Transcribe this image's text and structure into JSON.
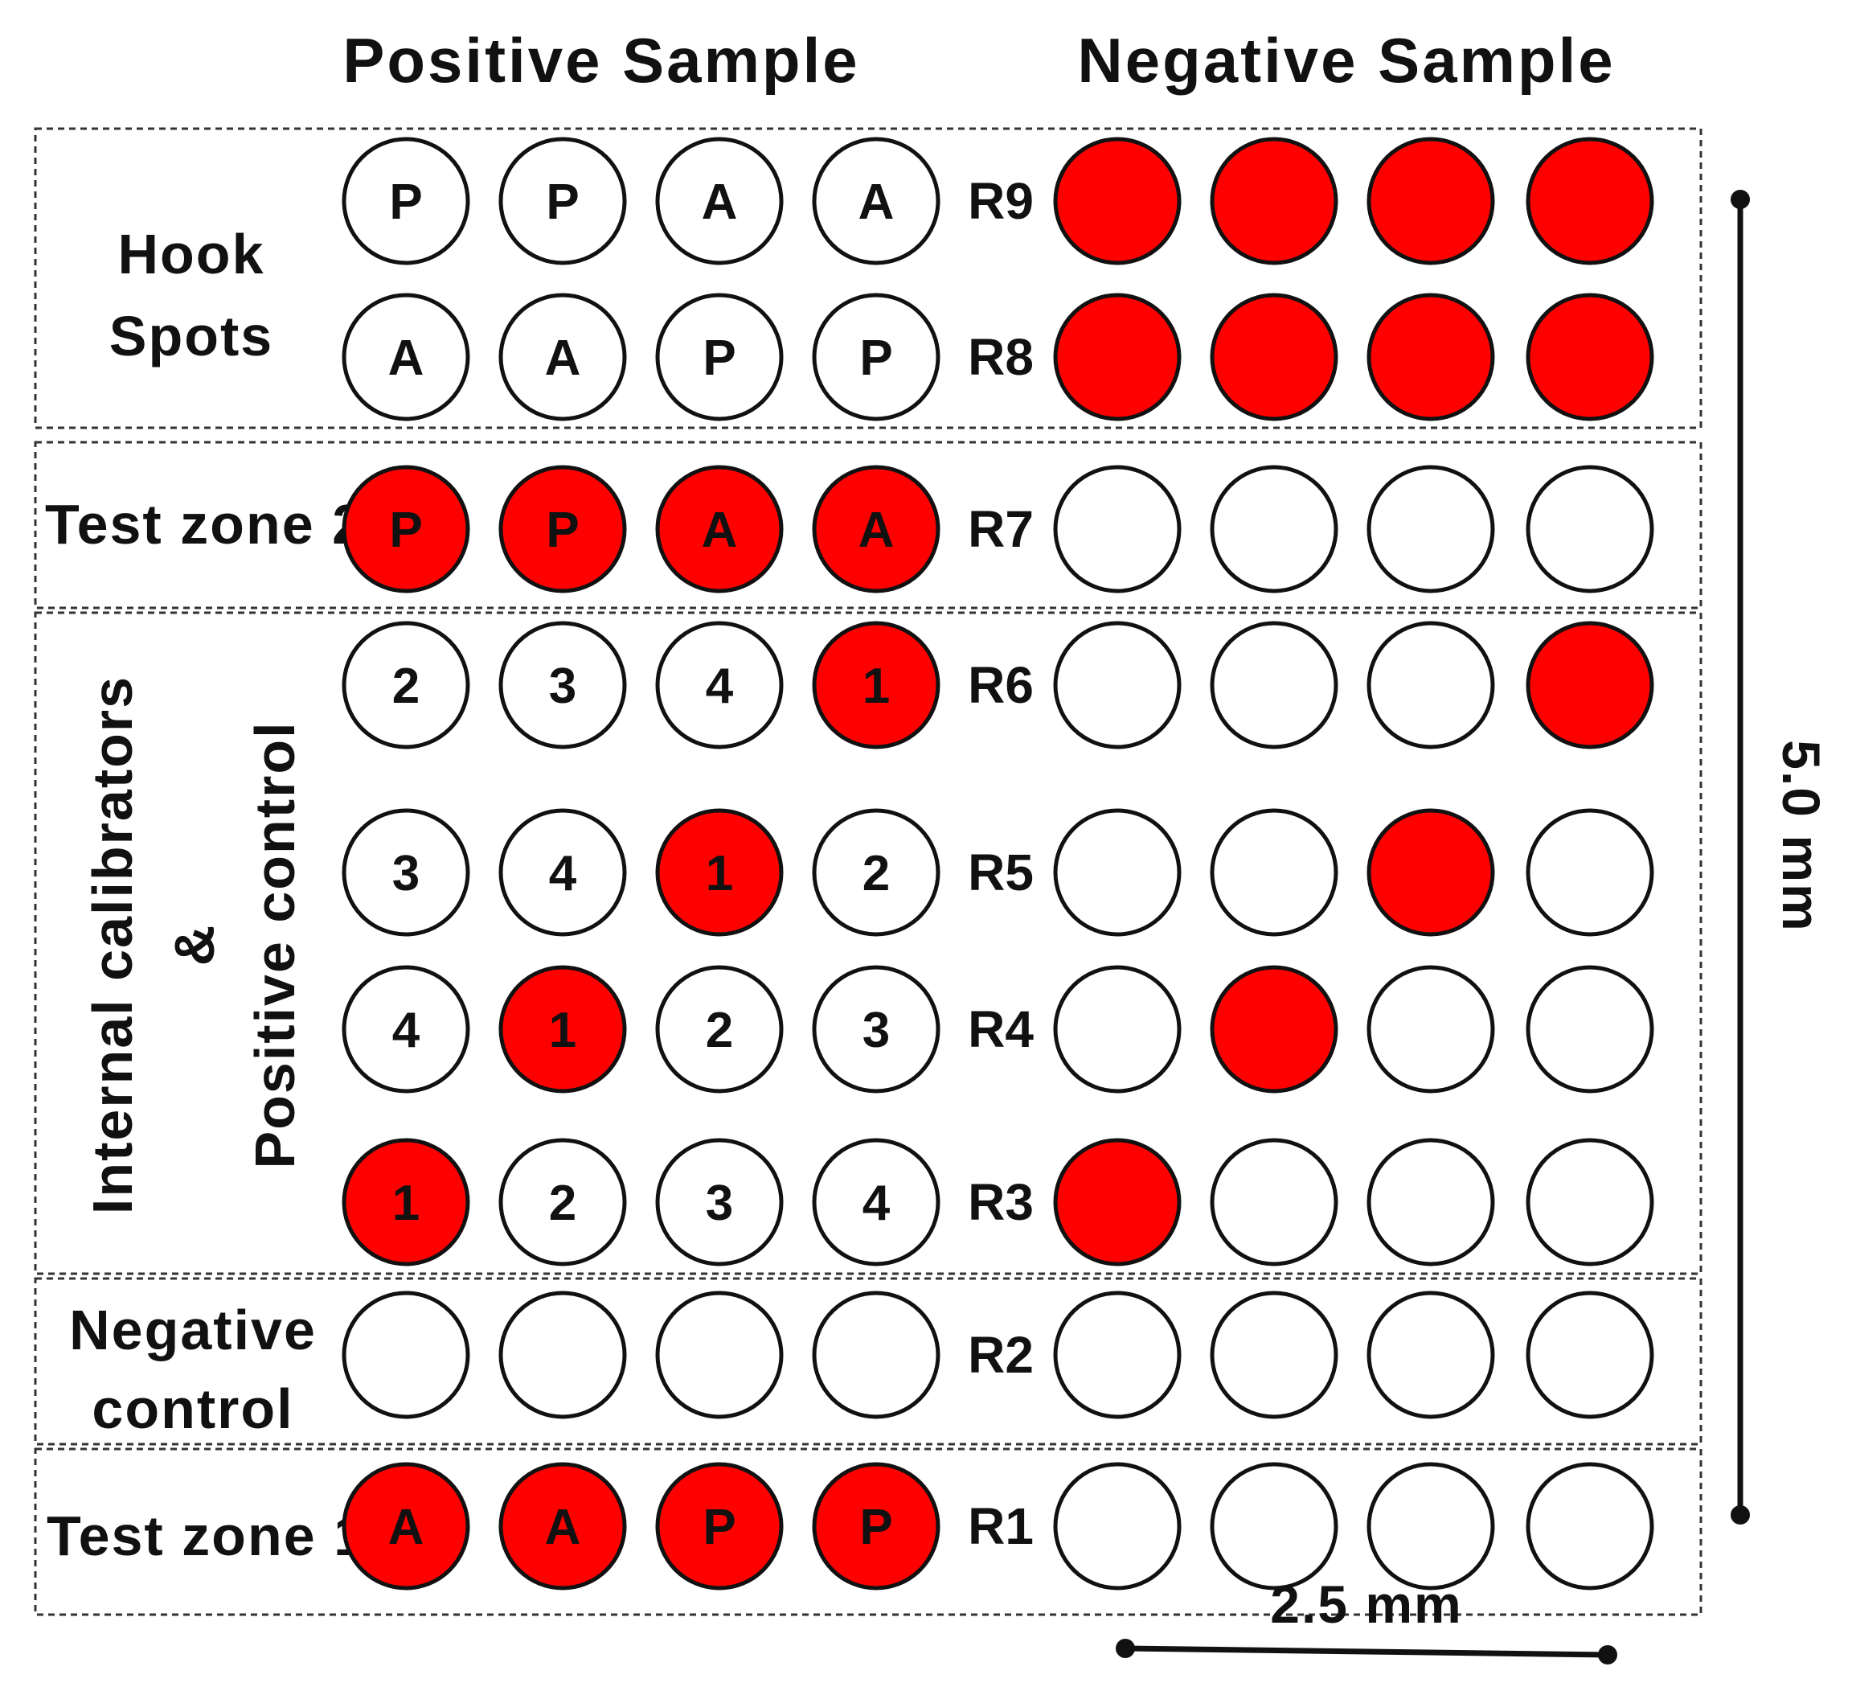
{
  "headers": {
    "positive": "Positive Sample",
    "negative": "Negative Sample"
  },
  "colors": {
    "active": "#ff0000",
    "inactive": "#ffffff",
    "stroke": "#111111"
  },
  "zones": {
    "hook": {
      "line1": "Hook",
      "line2": "Spots"
    },
    "test2": "Test zone 2",
    "calib": {
      "line1": "Internal calibrators",
      "line2": "&",
      "line3": "Positive control"
    },
    "negctrl": {
      "line1": "Negative",
      "line2": "control"
    },
    "test1": "Test zone 1"
  },
  "rows": [
    {
      "label": "R9",
      "positive": [
        [
          "P",
          false
        ],
        [
          "P",
          false
        ],
        [
          "A",
          false
        ],
        [
          "A",
          false
        ]
      ],
      "negative": [
        true,
        true,
        true,
        true
      ]
    },
    {
      "label": "R8",
      "positive": [
        [
          "A",
          false
        ],
        [
          "A",
          false
        ],
        [
          "P",
          false
        ],
        [
          "P",
          false
        ]
      ],
      "negative": [
        true,
        true,
        true,
        true
      ]
    },
    {
      "label": "R7",
      "positive": [
        [
          "P",
          true
        ],
        [
          "P",
          true
        ],
        [
          "A",
          true
        ],
        [
          "A",
          true
        ]
      ],
      "negative": [
        false,
        false,
        false,
        false
      ]
    },
    {
      "label": "R6",
      "positive": [
        [
          "2",
          false
        ],
        [
          "3",
          false
        ],
        [
          "4",
          false
        ],
        [
          "1",
          true
        ]
      ],
      "negative": [
        false,
        false,
        false,
        true
      ]
    },
    {
      "label": "R5",
      "positive": [
        [
          "3",
          false
        ],
        [
          "4",
          false
        ],
        [
          "1",
          true
        ],
        [
          "2",
          false
        ]
      ],
      "negative": [
        false,
        false,
        true,
        false
      ]
    },
    {
      "label": "R4",
      "positive": [
        [
          "4",
          false
        ],
        [
          "1",
          true
        ],
        [
          "2",
          false
        ],
        [
          "3",
          false
        ]
      ],
      "negative": [
        false,
        true,
        false,
        false
      ]
    },
    {
      "label": "R3",
      "positive": [
        [
          "1",
          true
        ],
        [
          "2",
          false
        ],
        [
          "3",
          false
        ],
        [
          "4",
          false
        ]
      ],
      "negative": [
        true,
        false,
        false,
        false
      ]
    },
    {
      "label": "R2",
      "positive": [
        [
          "",
          false
        ],
        [
          "",
          false
        ],
        [
          "",
          false
        ],
        [
          "",
          false
        ]
      ],
      "negative": [
        false,
        false,
        false,
        false
      ]
    },
    {
      "label": "R1",
      "positive": [
        [
          "A",
          true
        ],
        [
          "A",
          true
        ],
        [
          "P",
          true
        ],
        [
          "P",
          true
        ]
      ],
      "negative": [
        false,
        false,
        false,
        false
      ]
    }
  ],
  "scale": {
    "vertical": "5.0 mm",
    "horizontal": "2.5 mm"
  }
}
